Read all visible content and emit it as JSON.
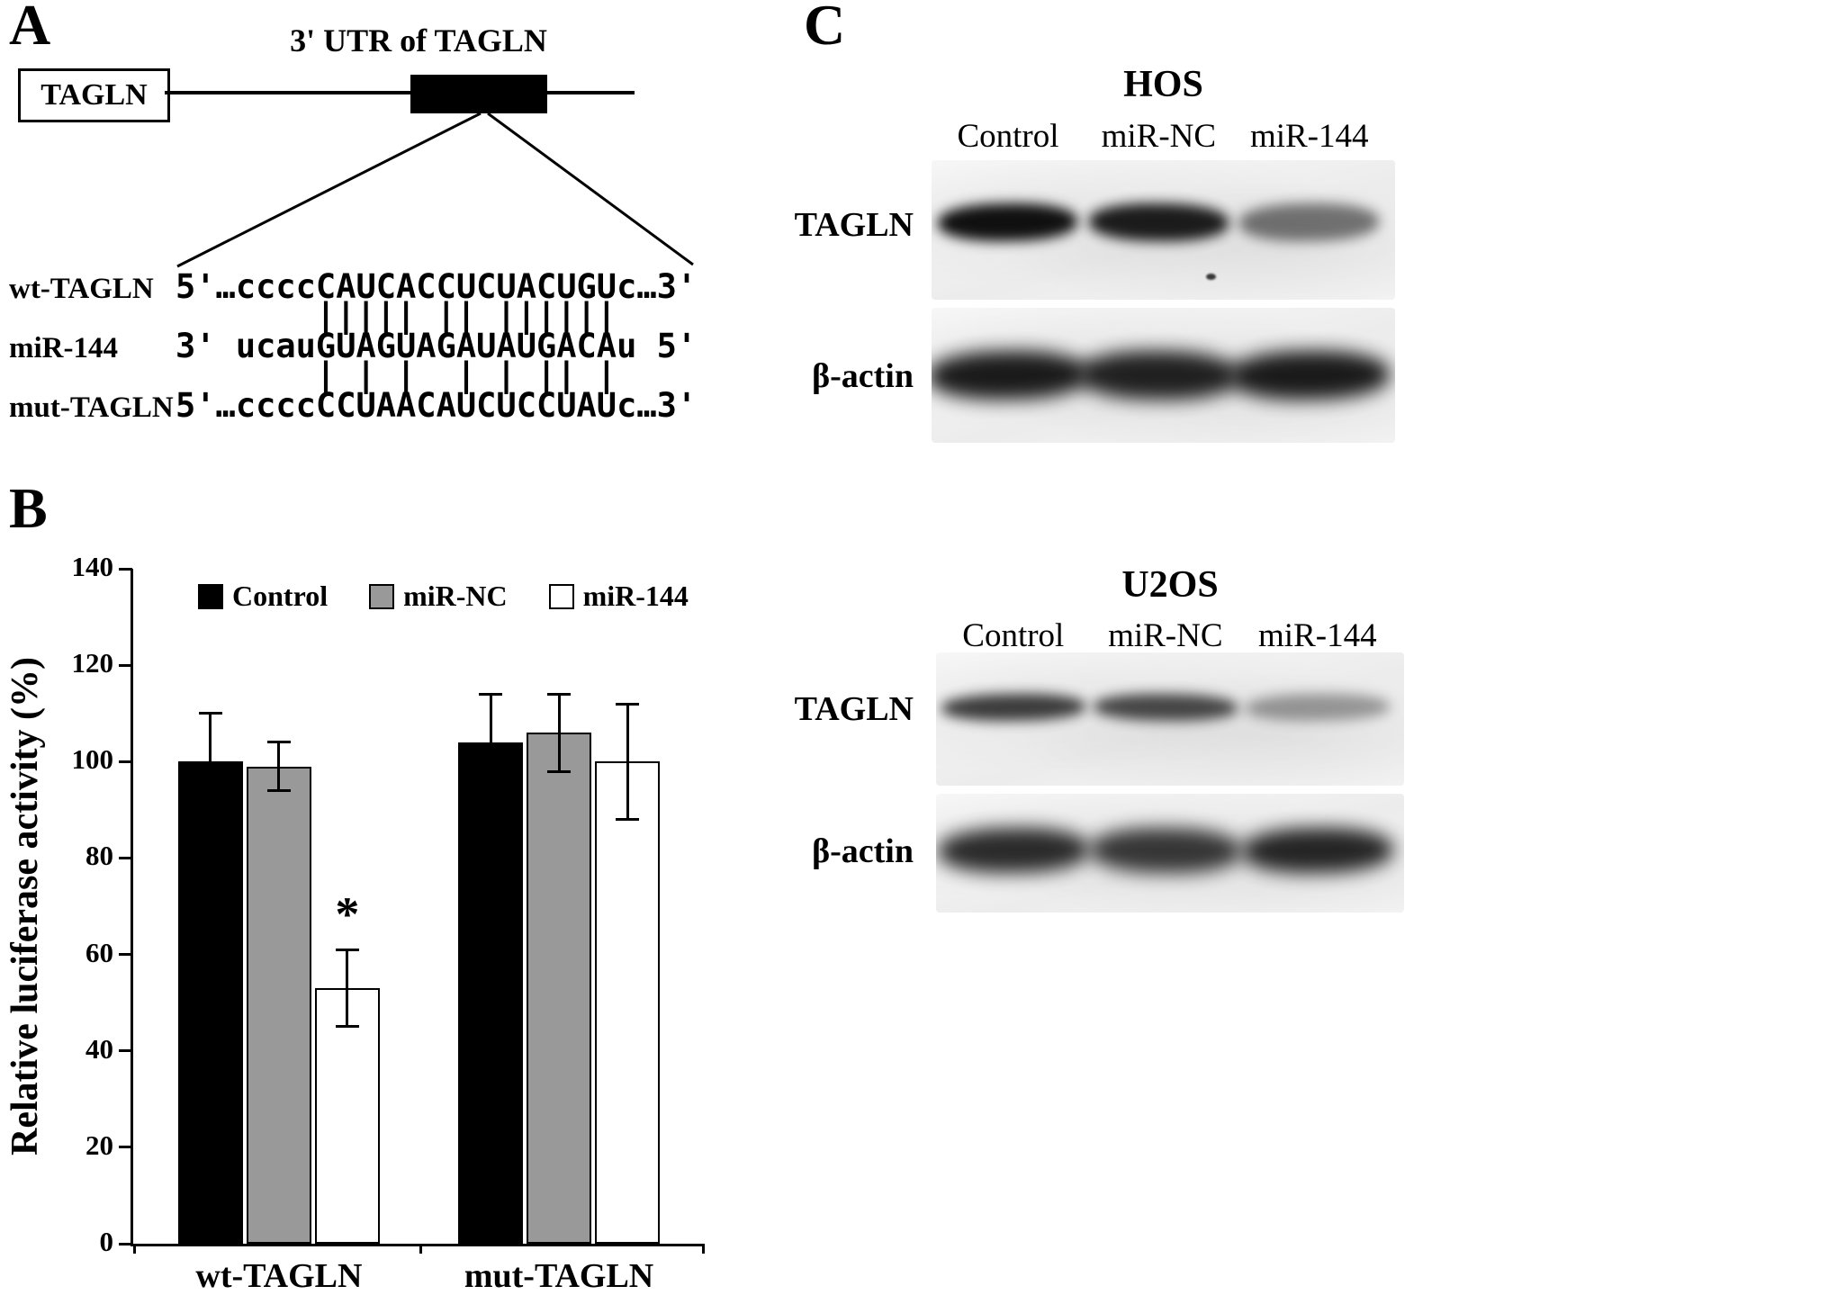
{
  "figure": {
    "panel_a_label": "A",
    "panel_b_label": "B",
    "panel_c_label": "C"
  },
  "panel_a": {
    "title": "3' UTR of TAGLN",
    "gene_box_label": "TAGLN",
    "alignment_rows": [
      {
        "name": "wt-TAGLN",
        "line": "5'…ccccCAUCACCUCUACUGUc…3'"
      },
      {
        "name": "",
        "line": "       ||||| || ||||||"
      },
      {
        "name": "miR-144",
        "line": "3' ucauGUAGUAGAUAUGACAu 5'"
      },
      {
        "name": "",
        "line": "       | | |  | | || |"
      },
      {
        "name": "mut-TAGLN",
        "line": "5'…ccccCCUAACAUCUCCUAUc…3'"
      }
    ]
  },
  "chart_data": {
    "type": "bar",
    "title": "",
    "xlabel": "",
    "ylabel": "Relative luciferase activity (%)",
    "ylim": [
      0,
      140
    ],
    "yticks": [
      0,
      20,
      40,
      60,
      80,
      100,
      120,
      140
    ],
    "categories": [
      "wt-TAGLN",
      "mut-TAGLN"
    ],
    "series": [
      {
        "name": "Control",
        "fill": "#000000",
        "values": [
          100,
          104
        ],
        "errors": [
          10,
          10
        ]
      },
      {
        "name": "miR-NC",
        "fill": "#999999",
        "values": [
          99,
          106
        ],
        "errors": [
          5,
          8
        ]
      },
      {
        "name": "miR-144",
        "fill": "#ffffff",
        "values": [
          53,
          100
        ],
        "errors": [
          8,
          12
        ]
      }
    ],
    "legend_position": "top",
    "annotations": [
      {
        "text": "*",
        "category": "wt-TAGLN",
        "series": "miR-144"
      }
    ]
  },
  "panel_c": {
    "sections": [
      {
        "cell_line": "HOS",
        "lanes": [
          "Control",
          "miR-NC",
          "miR-144"
        ],
        "rows": [
          {
            "protein": "TAGLN",
            "band_intensities": [
              1.0,
              0.95,
              0.55
            ]
          },
          {
            "protein": "β-actin",
            "band_intensities": [
              0.95,
              0.92,
              0.95
            ]
          }
        ]
      },
      {
        "cell_line": "U2OS",
        "lanes": [
          "Control",
          "miR-NC",
          "miR-144"
        ],
        "rows": [
          {
            "protein": "TAGLN",
            "band_intensities": [
              0.8,
              0.75,
              0.38
            ]
          },
          {
            "protein": "β-actin",
            "band_intensities": [
              0.88,
              0.82,
              0.9
            ]
          }
        ]
      }
    ]
  }
}
